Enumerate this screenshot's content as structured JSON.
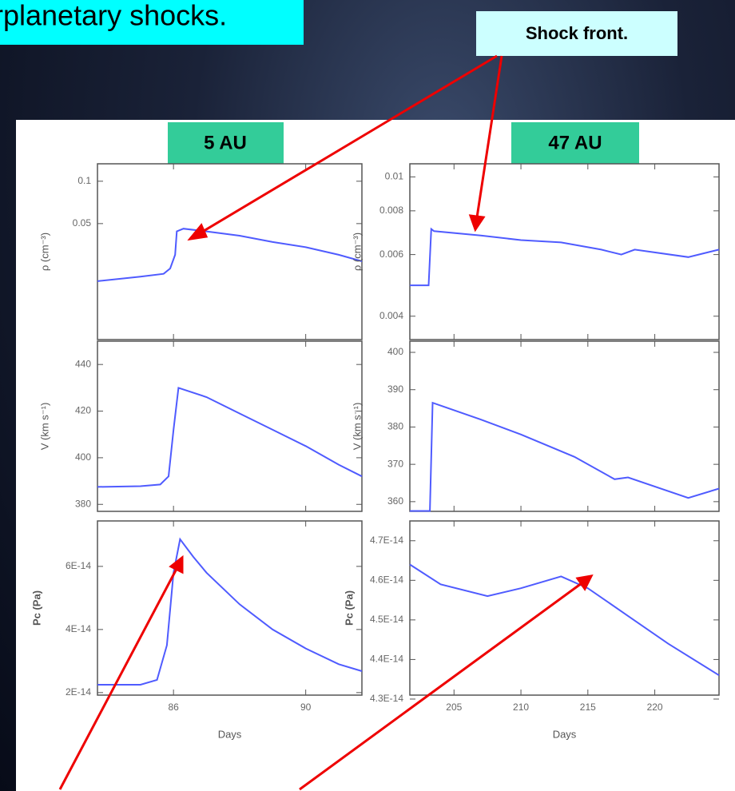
{
  "title": "rplanetary shocks.",
  "callout": "Shock front.",
  "columns": [
    "5 AU",
    "47 AU"
  ],
  "chart_data": [
    {
      "type": "line",
      "ylabel": "ρ (cm⁻³)",
      "log_y": true,
      "color": "#4f5bff",
      "x": [
        83.7,
        85,
        85.7,
        85.9,
        86.05,
        86.1,
        86.3,
        87,
        88,
        89,
        90,
        91,
        91.7
      ],
      "values": [
        0.0195,
        0.021,
        0.022,
        0.024,
        0.03,
        0.044,
        0.046,
        0.044,
        0.041,
        0.037,
        0.034,
        0.03,
        0.027
      ],
      "xlim": [
        83.7,
        91.7
      ],
      "ylim": [
        0.0075,
        0.133
      ],
      "yticks": [
        0.1,
        0.05
      ]
    },
    {
      "type": "line",
      "ylabel": "V (km s⁻¹)",
      "color": "#4f5bff",
      "x": [
        83.7,
        85,
        85.6,
        85.85,
        86.0,
        86.15,
        87,
        88,
        89,
        90,
        91,
        91.7
      ],
      "values": [
        387.5,
        387.8,
        388.5,
        392,
        412,
        430,
        426,
        419,
        412,
        405,
        397,
        392
      ],
      "xlim": [
        83.7,
        91.7
      ],
      "ylim": [
        377,
        450
      ],
      "yticks": [
        440,
        420,
        400,
        380
      ]
    },
    {
      "type": "line",
      "ylabel": "Pc (Pa)",
      "xlabel": "Days",
      "color": "#4f5bff",
      "x": [
        83.7,
        85,
        85.5,
        85.8,
        86.0,
        86.2,
        86.6,
        87,
        88,
        89,
        90,
        91,
        91.7
      ],
      "values": [
        2.25e-14,
        2.25e-14,
        2.4e-14,
        3.5e-14,
        5.8e-14,
        6.86e-14,
        6.3e-14,
        5.8e-14,
        4.8e-14,
        4e-14,
        3.4e-14,
        2.9e-14,
        2.68e-14
      ],
      "xlim": [
        83.7,
        91.7
      ],
      "ylim": [
        1.92e-14,
        7.44e-14
      ],
      "yticks": [
        {
          "value": 6e-14,
          "label": "6E-14"
        },
        {
          "value": 4e-14,
          "label": "4E-14"
        },
        {
          "value": 2e-14,
          "label": "2E-14"
        }
      ],
      "xticks": [
        86,
        90
      ]
    },
    {
      "type": "line",
      "ylabel": "ρ (cm⁻³)",
      "log_y": true,
      "color": "#4f5bff",
      "x": [
        201.7,
        203.1,
        203.3,
        203.5,
        207,
        210,
        213,
        216,
        217.5,
        218.5,
        222.5,
        224.8
      ],
      "values": [
        0.0049,
        0.0049,
        0.0071,
        0.007,
        0.0068,
        0.0066,
        0.0065,
        0.0062,
        0.006,
        0.0062,
        0.0059,
        0.0062
      ],
      "xlim": [
        201.7,
        224.8
      ],
      "ylim": [
        0.00343,
        0.0109
      ],
      "yticks": [
        0.01,
        0.008,
        0.006,
        0.004
      ]
    },
    {
      "type": "line",
      "ylabel": "V (km s⁻¹)",
      "color": "#4f5bff",
      "x": [
        201.7,
        203.2,
        203.4,
        207,
        210,
        214,
        217,
        218,
        222.5,
        224.8
      ],
      "values": [
        357.5,
        357.5,
        386.5,
        382,
        378,
        372,
        366,
        366.5,
        361,
        363.5
      ],
      "xlim": [
        201.7,
        224.8
      ],
      "ylim": [
        357.4,
        403
      ],
      "yticks": [
        400,
        390,
        380,
        370,
        360
      ]
    },
    {
      "type": "line",
      "ylabel": "Pc (Pa)",
      "xlabel": "Days",
      "color": "#4f5bff",
      "x": [
        201.7,
        204,
        207.5,
        210,
        213,
        215,
        218,
        221,
        224.8
      ],
      "values": [
        4.64e-14,
        4.59e-14,
        4.56e-14,
        4.58e-14,
        4.61e-14,
        4.58e-14,
        4.51e-14,
        4.44e-14,
        4.36e-14
      ],
      "xlim": [
        201.7,
        224.8
      ],
      "ylim": [
        4.31e-14,
        4.75e-14
      ],
      "yticks": [
        {
          "value": 4.7e-14,
          "label": "4.7E-14"
        },
        {
          "value": 4.6e-14,
          "label": "4.6E-14"
        },
        {
          "value": 4.5e-14,
          "label": "4.5E-14"
        },
        {
          "value": 4.4e-14,
          "label": "4.4E-14"
        },
        {
          "value": 4.3e-14,
          "label": "4.3E-14"
        }
      ],
      "xticks": [
        205,
        210,
        215,
        220
      ]
    }
  ]
}
